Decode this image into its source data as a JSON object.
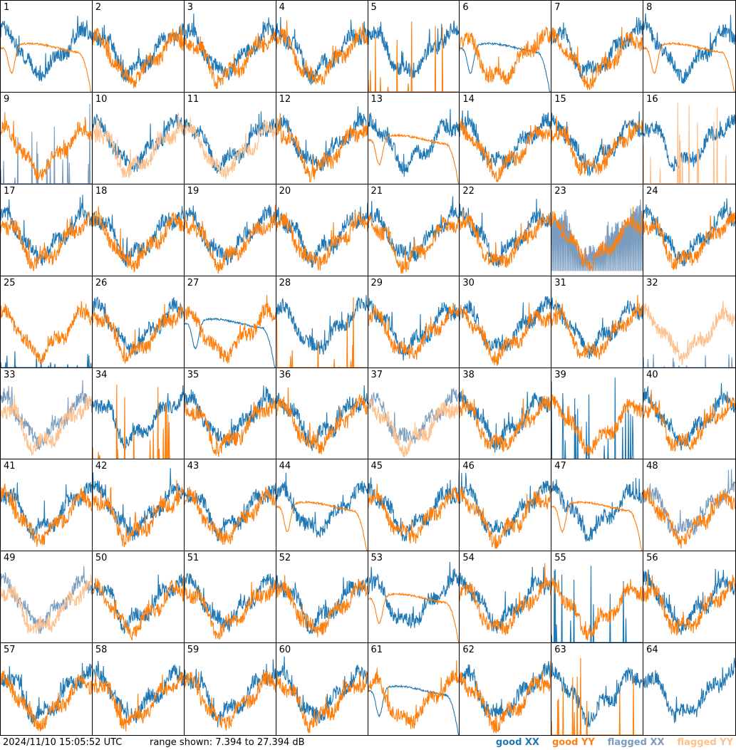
{
  "timestamp": "2024/11/10 15:05:52 UTC",
  "range_text": "range shown: 7.394 to 27.394 dB",
  "legend": {
    "good_xx": "good XX",
    "good_yy": "good YY",
    "flagged_xx": "flagged XX",
    "flagged_yy": "flagged YY"
  },
  "colors": {
    "good_xx": "#1f77b4",
    "good_yy": "#ff7f0e",
    "flagged_xx": "#7a9cbf",
    "flagged_yy": "#ffbf8a"
  },
  "chart_data": {
    "type": "line",
    "grid": false,
    "ylim": [
      7.394,
      27.394
    ],
    "panels": [
      {
        "id": "1",
        "xx": "good",
        "yy": "good",
        "style": "yyDecay"
      },
      {
        "id": "2",
        "xx": "good",
        "yy": "good",
        "style": "normal"
      },
      {
        "id": "3",
        "xx": "good",
        "yy": "good",
        "style": "normal"
      },
      {
        "id": "4",
        "xx": "good",
        "yy": "good",
        "style": "normal"
      },
      {
        "id": "5",
        "xx": "good",
        "yy": "good",
        "style": "yySpikes"
      },
      {
        "id": "6",
        "xx": "good",
        "yy": "good",
        "style": "xxDecay"
      },
      {
        "id": "7",
        "xx": "good",
        "yy": "good",
        "style": "normal"
      },
      {
        "id": "8",
        "xx": "good",
        "yy": "good",
        "style": "yyDecay"
      },
      {
        "id": "9",
        "xx": "flagged",
        "yy": "good",
        "style": "xxSpikes"
      },
      {
        "id": "10",
        "xx": "good",
        "yy": "flagged",
        "style": "normal"
      },
      {
        "id": "11",
        "xx": "good",
        "yy": "flagged",
        "style": "normal"
      },
      {
        "id": "12",
        "xx": "good",
        "yy": "good",
        "style": "normal"
      },
      {
        "id": "13",
        "xx": "good",
        "yy": "good",
        "style": "yyDecay"
      },
      {
        "id": "14",
        "xx": "good",
        "yy": "good",
        "style": "normal"
      },
      {
        "id": "15",
        "xx": "good",
        "yy": "good",
        "style": "normal"
      },
      {
        "id": "16",
        "xx": "good",
        "yy": "flagged",
        "style": "yySpikes"
      },
      {
        "id": "17",
        "xx": "good",
        "yy": "good",
        "style": "normal"
      },
      {
        "id": "18",
        "xx": "good",
        "yy": "good",
        "style": "normal"
      },
      {
        "id": "19",
        "xx": "good",
        "yy": "good",
        "style": "normal"
      },
      {
        "id": "20",
        "xx": "good",
        "yy": "good",
        "style": "normal"
      },
      {
        "id": "21",
        "xx": "good",
        "yy": "good",
        "style": "normal"
      },
      {
        "id": "22",
        "xx": "good",
        "yy": "good",
        "style": "normal"
      },
      {
        "id": "23",
        "xx": "flagged",
        "yy": "good",
        "style": "xxNoisy"
      },
      {
        "id": "24",
        "xx": "good",
        "yy": "good",
        "style": "normal"
      },
      {
        "id": "25",
        "xx": "good",
        "yy": "good",
        "style": "xxLow"
      },
      {
        "id": "26",
        "xx": "good",
        "yy": "good",
        "style": "normal"
      },
      {
        "id": "27",
        "xx": "good",
        "yy": "good",
        "style": "xxDecay"
      },
      {
        "id": "28",
        "xx": "good",
        "yy": "good",
        "style": "yySpikes"
      },
      {
        "id": "29",
        "xx": "good",
        "yy": "good",
        "style": "normal"
      },
      {
        "id": "30",
        "xx": "good",
        "yy": "good",
        "style": "normal"
      },
      {
        "id": "31",
        "xx": "good",
        "yy": "good",
        "style": "normal"
      },
      {
        "id": "32",
        "xx": "flagged",
        "yy": "flagged",
        "style": "yyOnly"
      },
      {
        "id": "33",
        "xx": "flagged",
        "yy": "flagged",
        "style": "normal"
      },
      {
        "id": "34",
        "xx": "good",
        "yy": "good",
        "style": "yySpikes"
      },
      {
        "id": "35",
        "xx": "good",
        "yy": "good",
        "style": "normal"
      },
      {
        "id": "36",
        "xx": "good",
        "yy": "good",
        "style": "normal"
      },
      {
        "id": "37",
        "xx": "flagged",
        "yy": "flagged",
        "style": "normal"
      },
      {
        "id": "38",
        "xx": "good",
        "yy": "good",
        "style": "normal"
      },
      {
        "id": "39",
        "xx": "good",
        "yy": "good",
        "style": "xxSpikes"
      },
      {
        "id": "40",
        "xx": "good",
        "yy": "good",
        "style": "normal"
      },
      {
        "id": "41",
        "xx": "good",
        "yy": "good",
        "style": "normal"
      },
      {
        "id": "42",
        "xx": "good",
        "yy": "good",
        "style": "normal"
      },
      {
        "id": "43",
        "xx": "good",
        "yy": "good",
        "style": "normal"
      },
      {
        "id": "44",
        "xx": "good",
        "yy": "good",
        "style": "yyDecay"
      },
      {
        "id": "45",
        "xx": "good",
        "yy": "good",
        "style": "normal"
      },
      {
        "id": "46",
        "xx": "good",
        "yy": "good",
        "style": "normal"
      },
      {
        "id": "47",
        "xx": "good",
        "yy": "good",
        "style": "yyDecay"
      },
      {
        "id": "48",
        "xx": "flagged",
        "yy": "good",
        "style": "normal"
      },
      {
        "id": "49",
        "xx": "flagged",
        "yy": "flagged",
        "style": "normal"
      },
      {
        "id": "50",
        "xx": "good",
        "yy": "good",
        "style": "normal"
      },
      {
        "id": "51",
        "xx": "good",
        "yy": "good",
        "style": "normal"
      },
      {
        "id": "52",
        "xx": "good",
        "yy": "good",
        "style": "normal"
      },
      {
        "id": "53",
        "xx": "good",
        "yy": "good",
        "style": "yyDecay"
      },
      {
        "id": "54",
        "xx": "good",
        "yy": "good",
        "style": "normal"
      },
      {
        "id": "55",
        "xx": "good",
        "yy": "good",
        "style": "xxSpikes"
      },
      {
        "id": "56",
        "xx": "good",
        "yy": "good",
        "style": "normal"
      },
      {
        "id": "57",
        "xx": "good",
        "yy": "good",
        "style": "normal"
      },
      {
        "id": "58",
        "xx": "good",
        "yy": "good",
        "style": "normal"
      },
      {
        "id": "59",
        "xx": "good",
        "yy": "good",
        "style": "normal"
      },
      {
        "id": "60",
        "xx": "good",
        "yy": "good",
        "style": "normal"
      },
      {
        "id": "61",
        "xx": "good",
        "yy": "good",
        "style": "xxDecay"
      },
      {
        "id": "62",
        "xx": "good",
        "yy": "good",
        "style": "normal"
      },
      {
        "id": "63",
        "xx": "good",
        "yy": "good",
        "style": "yySpikes"
      },
      {
        "id": "64",
        "xx": "good",
        "yy": "good",
        "style": "xxOnly"
      }
    ]
  }
}
